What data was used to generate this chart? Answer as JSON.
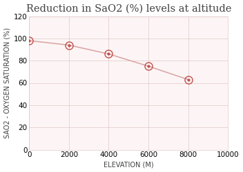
{
  "title": "Reduction in SaO2 (%) levels at altitude",
  "xlabel": "ELEVATION (M)",
  "ylabel": "SAO2 - OXYGEN SATURATION (%)",
  "x": [
    0,
    2000,
    4000,
    6000,
    8000
  ],
  "y": [
    98,
    94,
    86,
    75,
    63
  ],
  "xlim": [
    0,
    10000
  ],
  "ylim": [
    0,
    120
  ],
  "xticks": [
    0,
    2000,
    4000,
    6000,
    8000,
    10000
  ],
  "yticks": [
    0,
    20,
    40,
    60,
    80,
    100,
    120
  ],
  "line_color": "#dba8a8",
  "marker_outer_color": "#c0504d",
  "marker_inner_color": "#c0504d",
  "bg_color": "#ffffff",
  "plot_bg_color": "#fdf5f5",
  "grid_color": "#e0c8c8",
  "title_fontsize": 10.5,
  "label_fontsize": 7,
  "tick_fontsize": 7.5,
  "title_color": "#404040",
  "label_color": "#404040"
}
